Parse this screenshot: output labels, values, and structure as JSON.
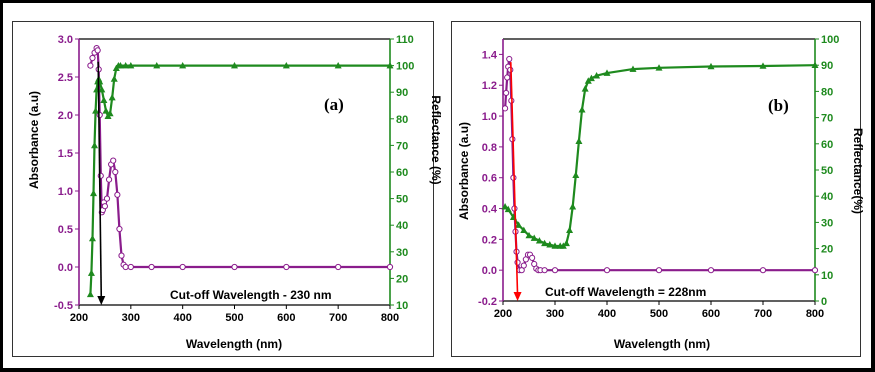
{
  "colors": {
    "absorbance": "#8a1c8c",
    "reflectance": "#1e8a1e",
    "arrow_a": "#000000",
    "arrow_b": "#ff0000",
    "frame": "#333333"
  },
  "chart_data": [
    {
      "type": "line",
      "panel_label": "(a)",
      "annotation": "Cut-off Wavelength - 230 nm",
      "xlabel": "Wavelength (nm)",
      "ylabel_left": "Absorbance (a.u)",
      "ylabel_right": "Reflectance (%)",
      "xlim": [
        200,
        800
      ],
      "ylim_left": [
        -0.5,
        3.0
      ],
      "ylim_right": [
        10,
        110
      ],
      "xticks": [
        "200",
        "300",
        "400",
        "500",
        "600",
        "700",
        "800"
      ],
      "yticks_left": [
        "-0.5",
        "0.0",
        "0.5",
        "1.0",
        "1.5",
        "2.0",
        "2.5",
        "3.0"
      ],
      "yticks_right": [
        "10",
        "20",
        "30",
        "40",
        "50",
        "60",
        "70",
        "80",
        "90",
        "100",
        "110"
      ],
      "arrow": {
        "x_top": 237,
        "y_top": 2.7,
        "x_bottom": 243,
        "y_bottom": -0.5
      },
      "series": [
        {
          "axis": "left",
          "x": [
            222,
            226,
            230,
            234,
            236,
            238,
            240,
            242,
            244,
            246,
            248,
            250,
            254,
            258,
            262,
            266,
            270,
            274,
            278,
            282,
            286,
            290,
            300,
            340,
            400,
            500,
            600,
            700,
            800
          ],
          "y": [
            2.65,
            2.75,
            2.82,
            2.88,
            2.85,
            2.6,
            2.0,
            1.2,
            0.72,
            0.75,
            0.85,
            0.8,
            0.9,
            1.15,
            1.35,
            1.4,
            1.25,
            0.95,
            0.5,
            0.15,
            0.03,
            0.0,
            0.0,
            0.0,
            0.0,
            0.0,
            0.0,
            0.0,
            0.0
          ]
        },
        {
          "axis": "right",
          "x": [
            222,
            224,
            226,
            228,
            230,
            232,
            234,
            236,
            238,
            240,
            244,
            248,
            252,
            256,
            260,
            264,
            268,
            272,
            276,
            280,
            290,
            300,
            350,
            400,
            500,
            600,
            700,
            800
          ],
          "y": [
            14,
            22,
            35,
            52,
            70,
            83,
            91,
            94,
            95,
            94,
            91,
            87,
            83,
            81,
            82,
            88,
            95,
            99,
            100,
            100,
            100,
            100,
            100,
            100,
            100,
            100,
            100,
            100
          ]
        }
      ]
    },
    {
      "type": "line",
      "panel_label": "(b)",
      "annotation": "Cut-off Wavelength = 228nm",
      "xlabel": "Wavelength (nm)",
      "ylabel_left": "Absorbance (a.u)",
      "ylabel_right": "Reflectance(%)",
      "xlim": [
        200,
        800
      ],
      "ylim_left": [
        -0.2,
        1.5
      ],
      "ylim_right": [
        0,
        100
      ],
      "xticks": [
        "200",
        "300",
        "400",
        "500",
        "600",
        "700",
        "800"
      ],
      "yticks_left": [
        "-0.2",
        "0.0",
        "0.2",
        "0.4",
        "0.6",
        "0.8",
        "1.0",
        "1.2",
        "1.4"
      ],
      "yticks_right": [
        "0",
        "10",
        "20",
        "30",
        "40",
        "50",
        "60",
        "70",
        "80",
        "90",
        "100"
      ],
      "arrow": {
        "x_top": 215,
        "y_top": 1.35,
        "x_bottom": 228,
        "y_bottom": -0.2
      },
      "series": [
        {
          "axis": "left",
          "x": [
            204,
            206,
            208,
            210,
            212,
            214,
            216,
            218,
            220,
            222,
            224,
            226,
            228,
            232,
            236,
            240,
            244,
            248,
            252,
            256,
            260,
            264,
            268,
            272,
            280,
            300,
            400,
            500,
            600,
            700,
            800
          ],
          "y": [
            1.05,
            1.15,
            1.25,
            1.32,
            1.37,
            1.3,
            1.1,
            0.85,
            0.6,
            0.4,
            0.25,
            0.12,
            0.05,
            0.0,
            0.0,
            0.03,
            0.07,
            0.1,
            0.1,
            0.08,
            0.04,
            0.01,
            0.0,
            0.0,
            0.0,
            0.0,
            0.0,
            0.0,
            0.0,
            0.0,
            0.0
          ]
        },
        {
          "axis": "right",
          "x": [
            204,
            210,
            220,
            230,
            240,
            250,
            260,
            270,
            280,
            290,
            300,
            310,
            316,
            322,
            328,
            334,
            340,
            346,
            352,
            358,
            364,
            370,
            380,
            400,
            450,
            500,
            600,
            700,
            800
          ],
          "y": [
            36,
            35,
            32,
            29,
            27,
            25,
            24,
            23,
            22,
            21.5,
            21,
            21,
            21,
            22,
            27,
            36,
            48,
            61,
            73,
            81,
            84,
            85,
            86,
            87,
            88.5,
            89,
            89.5,
            89.7,
            90
          ]
        }
      ]
    }
  ]
}
